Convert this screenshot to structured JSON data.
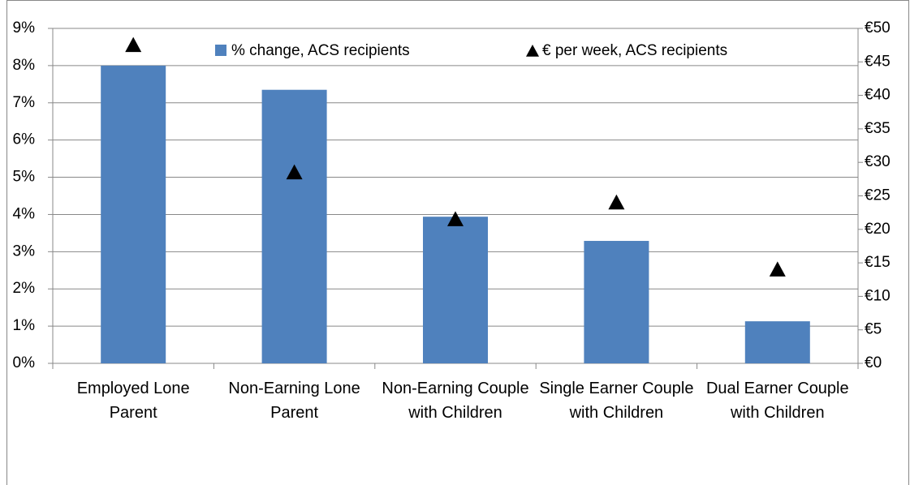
{
  "chart_data": {
    "type": "bar",
    "categories": [
      "Employed Lone Parent",
      "Non-Earning Lone Parent",
      "Non-Earning Couple with Children",
      "Single Earner Couple with Children",
      "Dual Earner Couple with Children"
    ],
    "series": [
      {
        "name": "% change, ACS recipients",
        "color": "#4f81bd",
        "type": "bar",
        "values": [
          8.0,
          7.35,
          3.94,
          3.29,
          1.13
        ]
      },
      {
        "name": "€ per week, ACS recipients",
        "color": "#000000",
        "type": "triangle",
        "axis": "y2",
        "values": [
          47.5,
          28.5,
          21.5,
          24,
          14
        ]
      }
    ],
    "ylim": [
      0,
      9
    ],
    "yticks": [
      {
        "value": 0,
        "label": "0%"
      },
      {
        "value": 1,
        "label": "1%"
      },
      {
        "value": 2,
        "label": "2%"
      },
      {
        "value": 3,
        "label": "3%"
      },
      {
        "value": 4,
        "label": "4%"
      },
      {
        "value": 5,
        "label": "5%"
      },
      {
        "value": 6,
        "label": "6%"
      },
      {
        "value": 7,
        "label": "7%"
      },
      {
        "value": 8,
        "label": "8%"
      },
      {
        "value": 9,
        "label": "9%"
      }
    ],
    "y2lim": [
      0,
      50
    ],
    "y2ticks": [
      {
        "value": 0,
        "label": "€0"
      },
      {
        "value": 5,
        "label": "€5"
      },
      {
        "value": 10,
        "label": "€10"
      },
      {
        "value": 15,
        "label": "€15"
      },
      {
        "value": 20,
        "label": "€20"
      },
      {
        "value": 25,
        "label": "€25"
      },
      {
        "value": 30,
        "label": "€30"
      },
      {
        "value": 35,
        "label": "€35"
      },
      {
        "value": 40,
        "label": "€40"
      },
      {
        "value": 45,
        "label": "€45"
      },
      {
        "value": 50,
        "label": "€50"
      }
    ],
    "grid": true
  }
}
